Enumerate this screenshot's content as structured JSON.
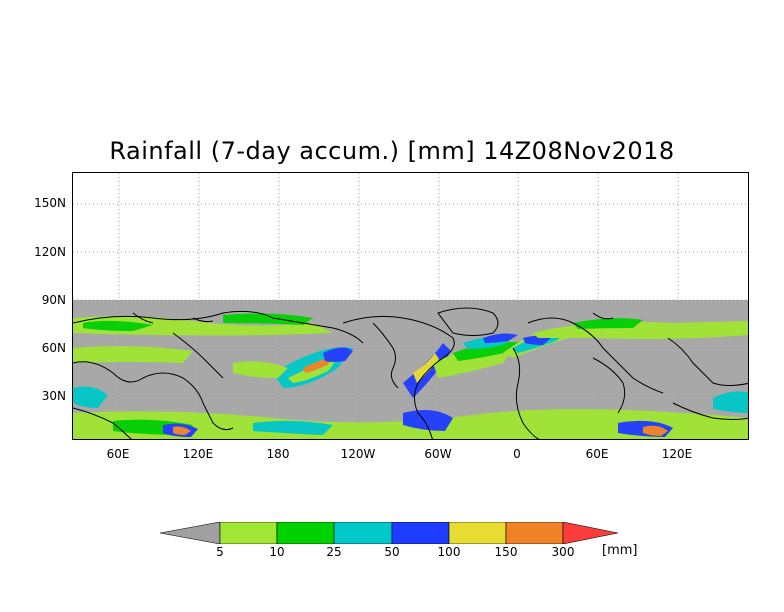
{
  "title": "Rainfall (7-day accum.) [mm] 14Z08Nov2018",
  "map": {
    "lat_ticks": [
      "150N",
      "120N",
      "90N",
      "60N",
      "30N"
    ],
    "lon_ticks": [
      "60E",
      "120E",
      "180",
      "120W",
      "60W",
      "0",
      "60E",
      "120E"
    ]
  },
  "colorbar": {
    "labels": [
      "5",
      "10",
      "25",
      "50",
      "100",
      "150",
      "300"
    ],
    "unit": "[mm]",
    "colors": [
      "#a0a0a0",
      "#a0e632",
      "#00d200",
      "#00c8c8",
      "#1e3cff",
      "#e6dc32",
      "#f08228",
      "#fa3c3c"
    ]
  }
}
